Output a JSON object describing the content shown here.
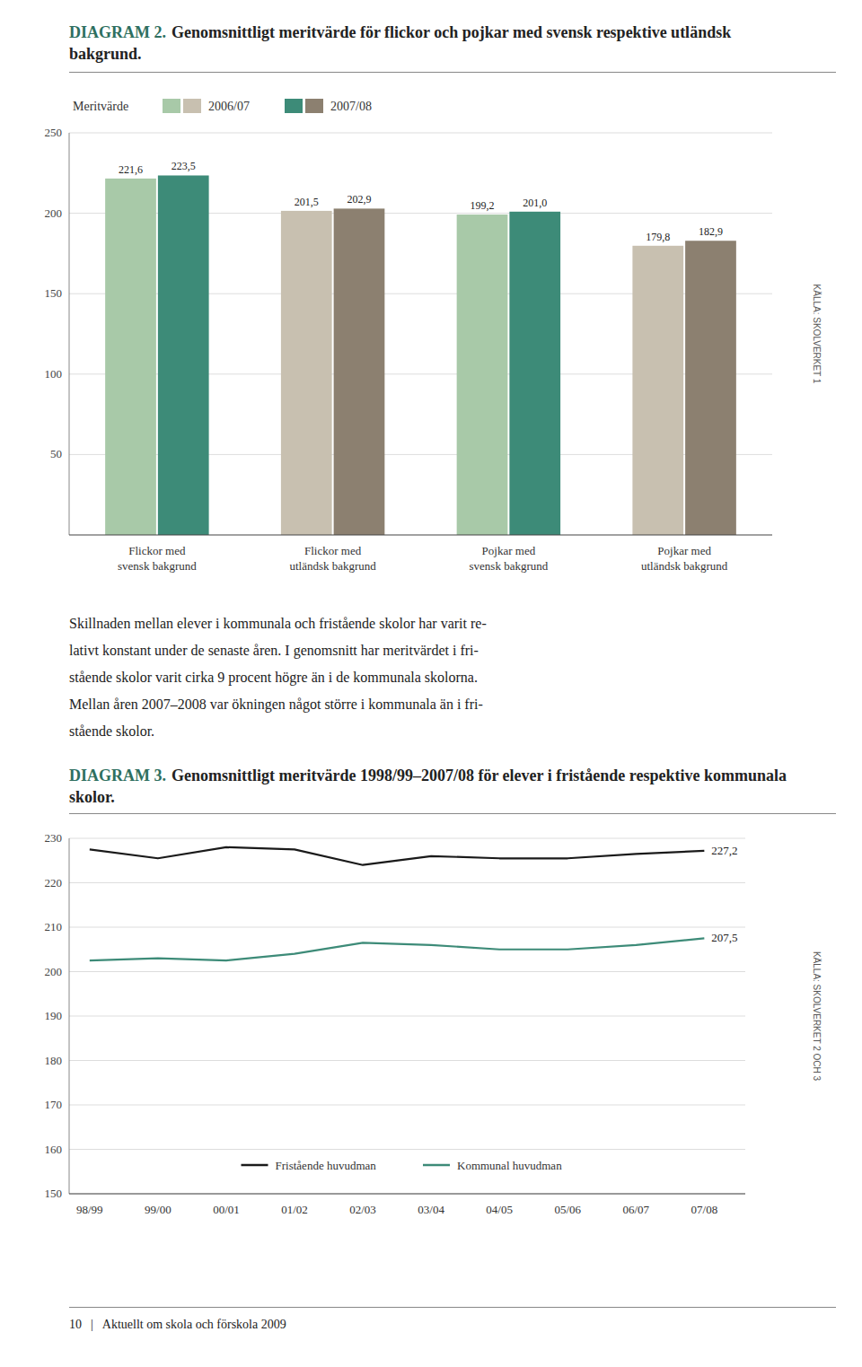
{
  "chart_data": [
    {
      "type": "bar",
      "title": "DIAGRAM 2.",
      "subtitle": "Genomsnittligt meritvärde för flickor och pojkar med svensk respektive utländsk bakgrund.",
      "legend_title": "Meritvärde",
      "categories": [
        "Flickor med\nsvensk bakgrund",
        "Flickor med\nutländsk bakgrund",
        "Pojkar med\nsvensk bakgrund",
        "Pojkar med\nutländsk bakgrund"
      ],
      "series": [
        {
          "name": "2006/07",
          "colors": [
            "#a8c9a8",
            "#c8c0b0",
            "#a8c9a8",
            "#c8c0b0"
          ],
          "values": [
            221.6,
            201.5,
            199.2,
            179.8
          ],
          "value_labels": [
            "221,6",
            "201,5",
            "199,2",
            "179,8"
          ]
        },
        {
          "name": "2007/08",
          "colors": [
            "#3d8b78",
            "#8c8070",
            "#3d8b78",
            "#8c8070"
          ],
          "values": [
            223.5,
            202.9,
            201.0,
            182.9
          ],
          "value_labels": [
            "223,5",
            "202,9",
            "201,0",
            "182,9"
          ]
        }
      ],
      "ylim": [
        0,
        250
      ],
      "yticks": [
        50,
        100,
        150,
        200,
        250
      ],
      "grid": true,
      "legend": "upper left",
      "data_labels": true,
      "annotations": [
        {
          "text": "KÄLLA: SKOLVERKET 1"
        }
      ]
    },
    {
      "type": "line",
      "title": "DIAGRAM 3.",
      "subtitle": "Genomsnittligt meritvärde 1998/99–2007/08 för elever i fristående respektive kommunala skolor.",
      "categories": [
        "98/99",
        "99/00",
        "00/01",
        "01/02",
        "02/03",
        "03/04",
        "04/05",
        "05/06",
        "06/07",
        "07/08"
      ],
      "series": [
        {
          "name": "Fristående huvudman",
          "color": "#1a1a1a",
          "values": [
            227.5,
            225.5,
            228.0,
            227.5,
            224.0,
            226.0,
            225.5,
            225.5,
            226.5,
            227.2
          ],
          "value_labels": [
            null,
            null,
            null,
            null,
            null,
            null,
            null,
            null,
            null,
            "227,2"
          ]
        },
        {
          "name": "Kommunal huvudman",
          "color": "#3d8b78",
          "values": [
            202.5,
            203.0,
            202.5,
            204.0,
            206.5,
            206.0,
            205.0,
            205.0,
            206.0,
            207.5
          ],
          "value_labels": [
            null,
            null,
            null,
            null,
            null,
            null,
            null,
            null,
            null,
            "207,5"
          ]
        }
      ],
      "ylim": [
        150,
        230
      ],
      "yticks": [
        150,
        160,
        170,
        180,
        190,
        200,
        210,
        220,
        230
      ],
      "grid": true,
      "legend": "lower center",
      "annotations": [
        {
          "text": "KÄLLA: SKOLVERKET 2 OCH 3"
        }
      ]
    }
  ],
  "page_text": {
    "body": [
      "Skillnaden mellan elever i kommunala och fristående skolor har varit re-",
      "lativt konstant under de senaste åren. I genomsnitt har meritvärdet i fri-",
      "stående skolor varit cirka 9 procent högre än i de kommunala skolorna.",
      "Mellan åren 2007–2008 var ökningen något större i kommunala än i fri-",
      "stående skolor."
    ],
    "footer": [
      "10",
      "|",
      "Aktuellt om skola och förskola 2009"
    ]
  }
}
